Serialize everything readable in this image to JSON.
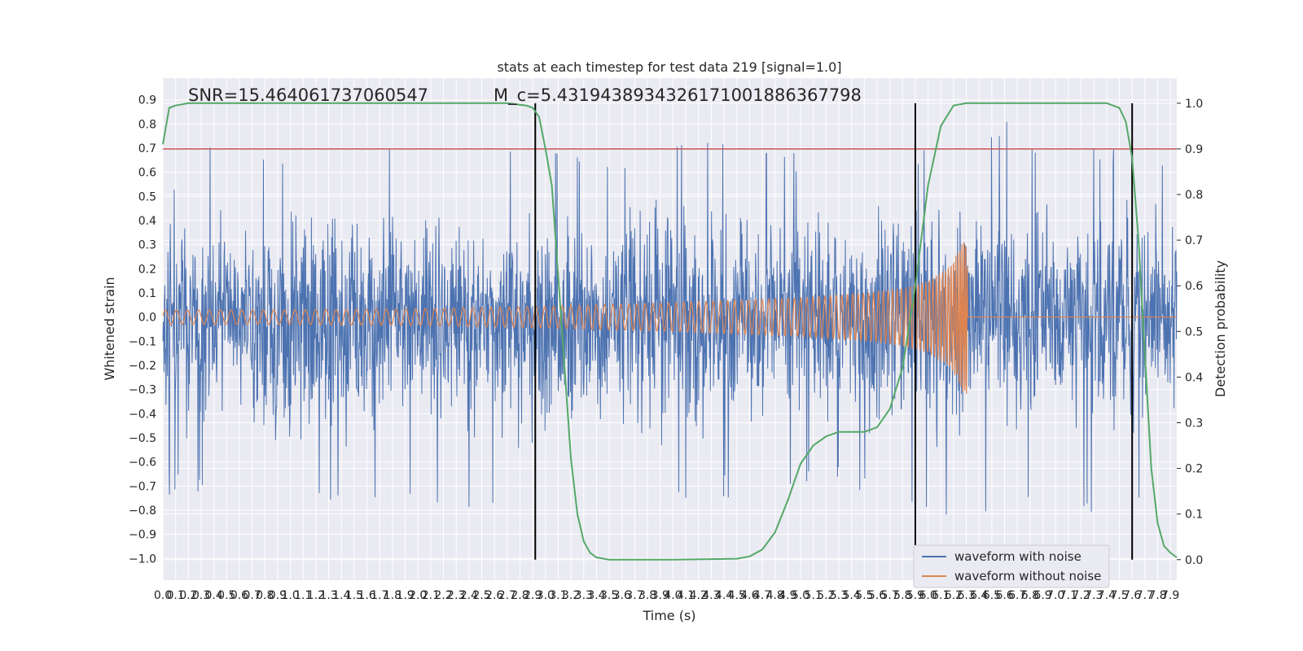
{
  "chart_data": {
    "type": "line",
    "title": "stats at each timestep for test data 219 [signal=1.0]",
    "xlabel": "Time (s)",
    "ylabel": "Whitened strain",
    "ylabel_right": "Detection probability",
    "xlim": [
      0.0,
      7.95
    ],
    "ylim": [
      -1.09,
      0.99
    ],
    "ylim_right": [
      -0.045,
      1.055
    ],
    "x_ticks": [
      0.0,
      0.1,
      0.2,
      0.3,
      0.4,
      0.5,
      0.6,
      0.7,
      0.8,
      0.9,
      1.0,
      1.1,
      1.2,
      1.3,
      1.4,
      1.5,
      1.6,
      1.7,
      1.8,
      1.9,
      2.0,
      2.1,
      2.2,
      2.3,
      2.4,
      2.5,
      2.6,
      2.7,
      2.8,
      2.9,
      3.0,
      3.1,
      3.2,
      3.3,
      3.4,
      3.5,
      3.6,
      3.7,
      3.8,
      3.9,
      4.0,
      4.1,
      4.2,
      4.3,
      4.4,
      4.5,
      4.6,
      4.7,
      4.8,
      4.9,
      5.0,
      5.1,
      5.2,
      5.3,
      5.4,
      5.5,
      5.6,
      5.7,
      5.8,
      5.9,
      6.0,
      6.1,
      6.2,
      6.3,
      6.4,
      6.5,
      6.6,
      6.7,
      6.8,
      6.9,
      7.0,
      7.1,
      7.2,
      7.3,
      7.4,
      7.5,
      7.6,
      7.7,
      7.8,
      7.9
    ],
    "y_ticks": [
      -1.0,
      -0.9,
      -0.8,
      -0.7,
      -0.6,
      -0.5,
      -0.4,
      -0.3,
      -0.2,
      -0.1,
      0.0,
      0.1,
      0.2,
      0.3,
      0.4,
      0.5,
      0.6,
      0.7,
      0.8,
      0.9
    ],
    "y_ticks_right": [
      0.0,
      0.1,
      0.2,
      0.3,
      0.4,
      0.5,
      0.6,
      0.7,
      0.8,
      0.9,
      1.0
    ],
    "annotations": [
      {
        "text": "SNR=15.464061737060547",
        "x": 0.2,
        "y": 0.9
      },
      {
        "text": "M_c=5.4319438934326171001886367798",
        "x": 2.6,
        "y": 0.9
      }
    ],
    "threshold": {
      "axis": "right",
      "y": 0.9,
      "color": "#c44e52"
    },
    "vlines": [
      2.92,
      5.9,
      7.6
    ],
    "series": [
      {
        "name": "waveform with noise",
        "axis": "left",
        "color": "#4c72b0",
        "kind": "noise",
        "envelope_upper": [
          [
            0.0,
            0.75
          ],
          [
            0.5,
            0.7
          ],
          [
            1.0,
            0.72
          ],
          [
            1.5,
            0.72
          ],
          [
            2.0,
            0.7
          ],
          [
            2.5,
            0.68
          ],
          [
            3.0,
            0.75
          ],
          [
            3.5,
            0.7
          ],
          [
            4.0,
            0.8
          ],
          [
            4.5,
            0.7
          ],
          [
            5.0,
            0.7
          ],
          [
            5.5,
            0.7
          ],
          [
            6.0,
            0.75
          ],
          [
            6.5,
            0.85
          ],
          [
            7.0,
            0.75
          ],
          [
            7.5,
            0.7
          ],
          [
            7.95,
            0.7
          ]
        ],
        "envelope_lower": [
          [
            0.0,
            -0.75
          ],
          [
            0.5,
            -0.72
          ],
          [
            1.0,
            -0.9
          ],
          [
            1.5,
            -0.8
          ],
          [
            2.0,
            -0.75
          ],
          [
            2.5,
            -0.85
          ],
          [
            3.0,
            -1.0
          ],
          [
            3.5,
            -0.78
          ],
          [
            4.0,
            -0.85
          ],
          [
            4.5,
            -0.75
          ],
          [
            5.0,
            -0.72
          ],
          [
            5.5,
            -0.72
          ],
          [
            6.0,
            -0.85
          ],
          [
            6.5,
            -0.8
          ],
          [
            7.0,
            -0.75
          ],
          [
            7.5,
            -0.95
          ],
          [
            7.95,
            -0.7
          ]
        ]
      },
      {
        "name": "waveform without noise",
        "axis": "left",
        "color": "#dd8452",
        "kind": "chirp",
        "amplitude": [
          [
            0.0,
            0.03
          ],
          [
            1.0,
            0.03
          ],
          [
            2.0,
            0.035
          ],
          [
            3.0,
            0.045
          ],
          [
            4.0,
            0.06
          ],
          [
            5.0,
            0.08
          ],
          [
            5.5,
            0.1
          ],
          [
            5.8,
            0.12
          ],
          [
            6.0,
            0.15
          ],
          [
            6.15,
            0.2
          ],
          [
            6.25,
            0.28
          ],
          [
            6.3,
            0.35
          ],
          [
            6.32,
            0.0
          ],
          [
            7.95,
            0.0
          ]
        ]
      },
      {
        "name": "Detection probability",
        "axis": "right",
        "color": "#55a868",
        "kind": "line",
        "points": [
          [
            0.0,
            0.91
          ],
          [
            0.05,
            0.99
          ],
          [
            0.1,
            0.995
          ],
          [
            0.2,
            1.0
          ],
          [
            2.5,
            1.0
          ],
          [
            2.7,
            1.0
          ],
          [
            2.85,
            0.995
          ],
          [
            2.9,
            0.99
          ],
          [
            2.95,
            0.97
          ],
          [
            3.0,
            0.9
          ],
          [
            3.05,
            0.82
          ],
          [
            3.1,
            0.62
          ],
          [
            3.15,
            0.42
          ],
          [
            3.2,
            0.22
          ],
          [
            3.25,
            0.1
          ],
          [
            3.3,
            0.04
          ],
          [
            3.35,
            0.015
          ],
          [
            3.4,
            0.005
          ],
          [
            3.5,
            0.0
          ],
          [
            4.0,
            0.0
          ],
          [
            4.5,
            0.002
          ],
          [
            4.6,
            0.007
          ],
          [
            4.7,
            0.022
          ],
          [
            4.8,
            0.06
          ],
          [
            4.9,
            0.13
          ],
          [
            5.0,
            0.21
          ],
          [
            5.1,
            0.25
          ],
          [
            5.2,
            0.27
          ],
          [
            5.3,
            0.28
          ],
          [
            5.5,
            0.28
          ],
          [
            5.6,
            0.29
          ],
          [
            5.7,
            0.33
          ],
          [
            5.8,
            0.42
          ],
          [
            5.9,
            0.6
          ],
          [
            6.0,
            0.82
          ],
          [
            6.1,
            0.95
          ],
          [
            6.2,
            0.995
          ],
          [
            6.3,
            1.0
          ],
          [
            7.4,
            1.0
          ],
          [
            7.5,
            0.99
          ],
          [
            7.55,
            0.96
          ],
          [
            7.6,
            0.88
          ],
          [
            7.65,
            0.7
          ],
          [
            7.7,
            0.45
          ],
          [
            7.75,
            0.2
          ],
          [
            7.8,
            0.08
          ],
          [
            7.85,
            0.03
          ],
          [
            7.9,
            0.015
          ],
          [
            7.95,
            0.005
          ]
        ]
      }
    ],
    "legend": {
      "placement": "lower-right",
      "entries": [
        "waveform with noise",
        "waveform without noise"
      ]
    },
    "grid": true,
    "colors": {
      "plot_background": "#eaeaf2",
      "grid": "#ffffff",
      "threshold": "#c44e52",
      "vline": "#000000"
    }
  }
}
